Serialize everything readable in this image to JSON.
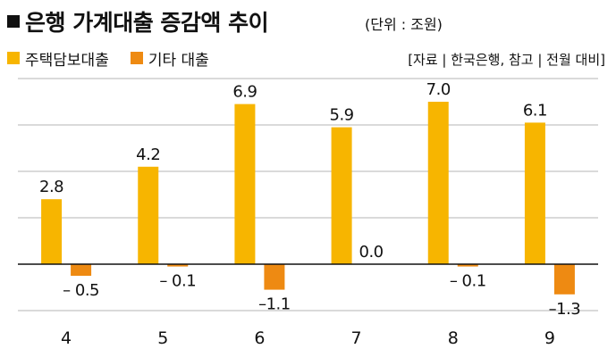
{
  "title": "은행 가계대출 증감액 추이",
  "unit": "(단위 : 조원)",
  "source": "[자료 | 한국은행, 참고 | 전월 대비]",
  "chart_data": {
    "type": "bar",
    "categories": [
      "4",
      "5",
      "6",
      "7",
      "8",
      "9"
    ],
    "series": [
      {
        "name": "주택담보대출",
        "color": "#F7B500",
        "values": [
          2.8,
          4.2,
          6.9,
          5.9,
          7.0,
          6.1
        ],
        "labels": [
          "2.8",
          "4.2",
          "6.9",
          "5.9",
          "7.0",
          "6.1"
        ]
      },
      {
        "name": "기타 대출",
        "color": "#EE8A12",
        "values": [
          -0.5,
          -0.1,
          -1.1,
          0.0,
          -0.1,
          -1.3
        ],
        "labels": [
          "– 0.5",
          "– 0.1",
          "–1.1",
          "0.0",
          "– 0.1",
          "–1.3"
        ]
      }
    ],
    "ylim": [
      -2,
      8
    ],
    "grid": true,
    "legend_position": "top-left"
  }
}
